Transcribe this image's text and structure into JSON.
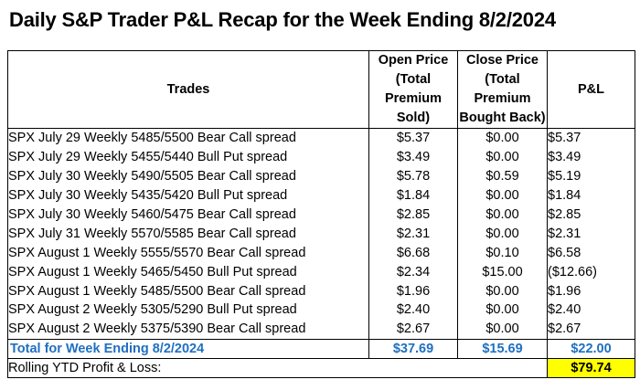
{
  "title": "Daily S&P Trader P&L Recap for the Week Ending 8/2/2024",
  "headers": {
    "trades": "Trades",
    "open_price": [
      "Open Price",
      "(Total",
      "Premium",
      "Sold)"
    ],
    "close_price": [
      "Close Price",
      "(Total",
      "Premium",
      "Bought Back)"
    ],
    "pl": "P&L"
  },
  "rows": [
    {
      "trade": "SPX July 29 Weekly 5485/5500 Bear Call spread",
      "open": "$5.37",
      "close": "$0.00",
      "pl": "$5.37"
    },
    {
      "trade": "SPX July 29 Weekly 5455/5440 Bull Put spread",
      "open": "$3.49",
      "close": "$0.00",
      "pl": "$3.49"
    },
    {
      "trade": "SPX July 30 Weekly 5490/5505 Bear Call spread",
      "open": "$5.78",
      "close": "$0.59",
      "pl": "$5.19"
    },
    {
      "trade": "SPX July 30 Weekly 5435/5420 Bull Put spread",
      "open": "$1.84",
      "close": "$0.00",
      "pl": "$1.84"
    },
    {
      "trade": "SPX July 30 Weekly 5460/5475 Bear Call spread",
      "open": "$2.85",
      "close": "$0.00",
      "pl": "$2.85"
    },
    {
      "trade": "SPX July 31 Weekly 5570/5585 Bear Call spread",
      "open": "$2.31",
      "close": "$0.00",
      "pl": "$2.31"
    },
    {
      "trade": "SPX August 1 Weekly 5555/5570 Bear Call spread",
      "open": "$6.68",
      "close": "$0.10",
      "pl": "$6.58"
    },
    {
      "trade": "SPX August 1 Weekly 5465/5450 Bull Put spread",
      "open": "$2.34",
      "close": "$15.00",
      "pl": "($12.66)"
    },
    {
      "trade": "SPX August 1 Weekly 5485/5500 Bear Call spread",
      "open": "$1.96",
      "close": "$0.00",
      "pl": "$1.96"
    },
    {
      "trade": "SPX August 2 Weekly 5305/5290 Bull Put spread",
      "open": "$2.40",
      "close": "$0.00",
      "pl": "$2.40"
    },
    {
      "trade": "SPX August 2 Weekly 5375/5390 Bear Call spread",
      "open": "$2.67",
      "close": "$0.00",
      "pl": "$2.67"
    }
  ],
  "total": {
    "label": "Total for Week Ending 8/2/2024",
    "open": "$37.69",
    "close": "$15.69",
    "pl": "$22.00"
  },
  "ytd": {
    "label": "Rolling YTD Profit & Loss:",
    "value": "$79.74"
  },
  "colors": {
    "total_text": "#1f6fc2",
    "ytd_highlight": "#ffff00"
  }
}
